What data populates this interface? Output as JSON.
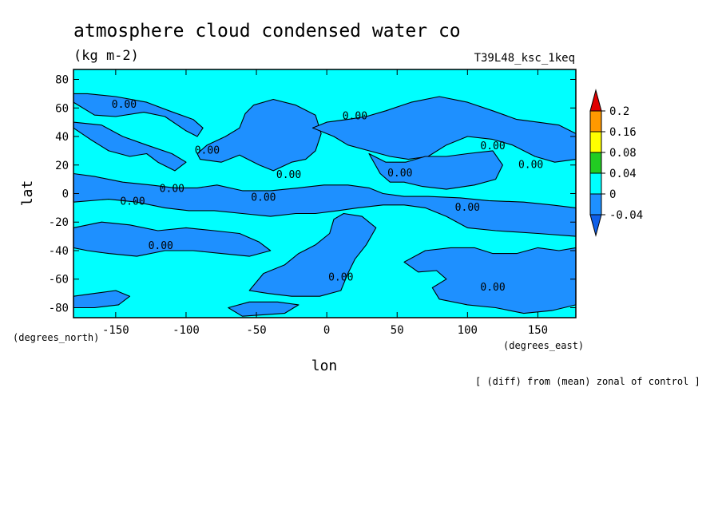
{
  "chart_data": {
    "type": "contour",
    "title": "atmosphere cloud condensed water co",
    "units": "(kg m-2)",
    "experiment": "T39L48_ksc_1keq",
    "xlabel": "lon",
    "ylabel": "lat",
    "x_units": "(degrees_east)",
    "y_units": "(degrees_north)",
    "footnote": "[ (diff) from (mean) zonal of control ]",
    "xlim": [
      -180,
      177
    ],
    "ylim": [
      -87,
      87
    ],
    "x_ticks": [
      -150,
      -100,
      -50,
      0,
      50,
      100,
      150
    ],
    "x_tick_labels": [
      "-150",
      "-100",
      "-50",
      "0",
      "50",
      "100",
      "150"
    ],
    "y_ticks": [
      80,
      60,
      40,
      20,
      0,
      -20,
      -40,
      -60,
      -80
    ],
    "y_tick_labels": [
      "80",
      "60",
      "40",
      "20",
      "0",
      "-20",
      "-40",
      "-60",
      "-80"
    ],
    "contour_levels": [
      -0.04,
      0,
      0.04,
      0.08,
      0.16,
      0.2
    ],
    "colorbar": {
      "labels": [
        "0.2",
        "0.16",
        "0.08",
        "0.04",
        "0",
        "-0.04"
      ],
      "colors": [
        "#e00000",
        "#ff9900",
        "#ffff00",
        "#22cc22",
        "#00ffff",
        "#1e90ff",
        "#1060e8"
      ]
    },
    "background_color": "#00ffff",
    "negative_color": "#1e90ff",
    "contour_labels": [
      {
        "text": "0.00",
        "lon": -144,
        "lat": 62
      },
      {
        "text": "0.00",
        "lon": 20,
        "lat": 54
      },
      {
        "text": "0.00",
        "lon": -85,
        "lat": 30
      },
      {
        "text": "0.00",
        "lon": 118,
        "lat": 33
      },
      {
        "text": "0.00",
        "lon": -27,
        "lat": 13
      },
      {
        "text": "0.00",
        "lon": 52,
        "lat": 14
      },
      {
        "text": "0.00",
        "lon": 145,
        "lat": 20
      },
      {
        "text": "0.00",
        "lon": -110,
        "lat": 3
      },
      {
        "text": "0.00",
        "lon": -45,
        "lat": -3
      },
      {
        "text": "0.00",
        "lon": -138,
        "lat": -6
      },
      {
        "text": "0.00",
        "lon": 100,
        "lat": -10
      },
      {
        "text": "0.00",
        "lon": -118,
        "lat": -37
      },
      {
        "text": "0.00",
        "lon": 10,
        "lat": -59
      },
      {
        "text": "0.00",
        "lon": 118,
        "lat": -66
      }
    ],
    "negative_regions": [
      [
        [
          -180,
          64
        ],
        [
          -165,
          55
        ],
        [
          -150,
          54
        ],
        [
          -130,
          57
        ],
        [
          -115,
          54
        ],
        [
          -100,
          44
        ],
        [
          -92,
          40
        ],
        [
          -88,
          46
        ],
        [
          -95,
          52
        ],
        [
          -112,
          58
        ],
        [
          -128,
          64
        ],
        [
          -150,
          68
        ],
        [
          -170,
          70
        ],
        [
          -180,
          70
        ]
      ],
      [
        [
          -180,
          46
        ],
        [
          -168,
          38
        ],
        [
          -155,
          30
        ],
        [
          -140,
          26
        ],
        [
          -128,
          28
        ],
        [
          -120,
          22
        ],
        [
          -108,
          16
        ],
        [
          -100,
          22
        ],
        [
          -110,
          28
        ],
        [
          -128,
          34
        ],
        [
          -145,
          40
        ],
        [
          -160,
          48
        ],
        [
          -180,
          50
        ]
      ],
      [
        [
          -90,
          24
        ],
        [
          -75,
          22
        ],
        [
          -62,
          27
        ],
        [
          -48,
          20
        ],
        [
          -38,
          16
        ],
        [
          -25,
          22
        ],
        [
          -15,
          24
        ],
        [
          -8,
          30
        ],
        [
          -4,
          42
        ],
        [
          -8,
          55
        ],
        [
          -22,
          62
        ],
        [
          -38,
          66
        ],
        [
          -52,
          62
        ],
        [
          -58,
          56
        ],
        [
          -62,
          46
        ],
        [
          -72,
          40
        ],
        [
          -85,
          34
        ],
        [
          -92,
          28
        ]
      ],
      [
        [
          -10,
          46
        ],
        [
          5,
          40
        ],
        [
          15,
          34
        ],
        [
          30,
          30
        ],
        [
          45,
          26
        ],
        [
          58,
          24
        ],
        [
          72,
          26
        ],
        [
          85,
          34
        ],
        [
          100,
          40
        ],
        [
          118,
          38
        ],
        [
          132,
          34
        ],
        [
          148,
          26
        ],
        [
          162,
          22
        ],
        [
          177,
          24
        ],
        [
          177,
          42
        ],
        [
          165,
          48
        ],
        [
          150,
          50
        ],
        [
          135,
          52
        ],
        [
          118,
          58
        ],
        [
          100,
          64
        ],
        [
          80,
          68
        ],
        [
          60,
          64
        ],
        [
          42,
          58
        ],
        [
          28,
          54
        ],
        [
          15,
          52
        ],
        [
          0,
          50
        ]
      ],
      [
        [
          30,
          28
        ],
        [
          42,
          22
        ],
        [
          56,
          22
        ],
        [
          70,
          26
        ],
        [
          85,
          26
        ],
        [
          100,
          28
        ],
        [
          118,
          30
        ],
        [
          125,
          20
        ],
        [
          120,
          10
        ],
        [
          105,
          6
        ],
        [
          85,
          3
        ],
        [
          68,
          5
        ],
        [
          55,
          8
        ],
        [
          45,
          8
        ],
        [
          38,
          14
        ]
      ],
      [
        [
          -180,
          14
        ],
        [
          -165,
          12
        ],
        [
          -145,
          8
        ],
        [
          -125,
          6
        ],
        [
          -108,
          4
        ],
        [
          -92,
          4
        ],
        [
          -78,
          6
        ],
        [
          -60,
          2
        ],
        [
          -40,
          2
        ],
        [
          -20,
          4
        ],
        [
          -2,
          6
        ],
        [
          15,
          6
        ],
        [
          30,
          4
        ],
        [
          40,
          0
        ],
        [
          55,
          -2
        ],
        [
          72,
          -2
        ],
        [
          95,
          -3
        ],
        [
          115,
          -5
        ],
        [
          140,
          -6
        ],
        [
          160,
          -8
        ],
        [
          177,
          -10
        ],
        [
          177,
          -30
        ],
        [
          150,
          -28
        ],
        [
          120,
          -26
        ],
        [
          100,
          -24
        ],
        [
          85,
          -16
        ],
        [
          70,
          -10
        ],
        [
          55,
          -8
        ],
        [
          40,
          -8
        ],
        [
          22,
          -10
        ],
        [
          8,
          -12
        ],
        [
          -8,
          -14
        ],
        [
          -22,
          -14
        ],
        [
          -40,
          -16
        ],
        [
          -60,
          -14
        ],
        [
          -80,
          -12
        ],
        [
          -98,
          -12
        ],
        [
          -115,
          -10
        ],
        [
          -135,
          -6
        ],
        [
          -155,
          -4
        ],
        [
          -180,
          -6
        ]
      ],
      [
        [
          -180,
          -24
        ],
        [
          -160,
          -20
        ],
        [
          -140,
          -22
        ],
        [
          -120,
          -26
        ],
        [
          -100,
          -24
        ],
        [
          -80,
          -26
        ],
        [
          -62,
          -28
        ],
        [
          -48,
          -34
        ],
        [
          -40,
          -40
        ],
        [
          -55,
          -44
        ],
        [
          -75,
          -42
        ],
        [
          -95,
          -40
        ],
        [
          -115,
          -40
        ],
        [
          -135,
          -44
        ],
        [
          -155,
          -42
        ],
        [
          -170,
          -40
        ],
        [
          -180,
          -38
        ]
      ],
      [
        [
          -55,
          -68
        ],
        [
          -45,
          -56
        ],
        [
          -30,
          -50
        ],
        [
          -20,
          -42
        ],
        [
          -8,
          -36
        ],
        [
          2,
          -28
        ],
        [
          5,
          -18
        ],
        [
          12,
          -14
        ],
        [
          25,
          -16
        ],
        [
          35,
          -24
        ],
        [
          28,
          -36
        ],
        [
          20,
          -46
        ],
        [
          15,
          -56
        ],
        [
          10,
          -68
        ],
        [
          -5,
          -72
        ],
        [
          -25,
          -72
        ],
        [
          -42,
          -70
        ]
      ],
      [
        [
          55,
          -48
        ],
        [
          70,
          -40
        ],
        [
          88,
          -38
        ],
        [
          105,
          -38
        ],
        [
          118,
          -42
        ],
        [
          135,
          -42
        ],
        [
          150,
          -38
        ],
        [
          165,
          -40
        ],
        [
          177,
          -38
        ],
        [
          177,
          -78
        ],
        [
          160,
          -82
        ],
        [
          140,
          -84
        ],
        [
          120,
          -80
        ],
        [
          100,
          -78
        ],
        [
          80,
          -74
        ],
        [
          75,
          -66
        ],
        [
          85,
          -60
        ],
        [
          78,
          -54
        ],
        [
          65,
          -55
        ]
      ],
      [
        [
          -180,
          -72
        ],
        [
          -165,
          -70
        ],
        [
          -150,
          -68
        ],
        [
          -140,
          -72
        ],
        [
          -148,
          -78
        ],
        [
          -165,
          -80
        ],
        [
          -180,
          -80
        ]
      ],
      [
        [
          -70,
          -80
        ],
        [
          -55,
          -76
        ],
        [
          -35,
          -76
        ],
        [
          -20,
          -78
        ],
        [
          -30,
          -84
        ],
        [
          -60,
          -86
        ]
      ]
    ]
  }
}
